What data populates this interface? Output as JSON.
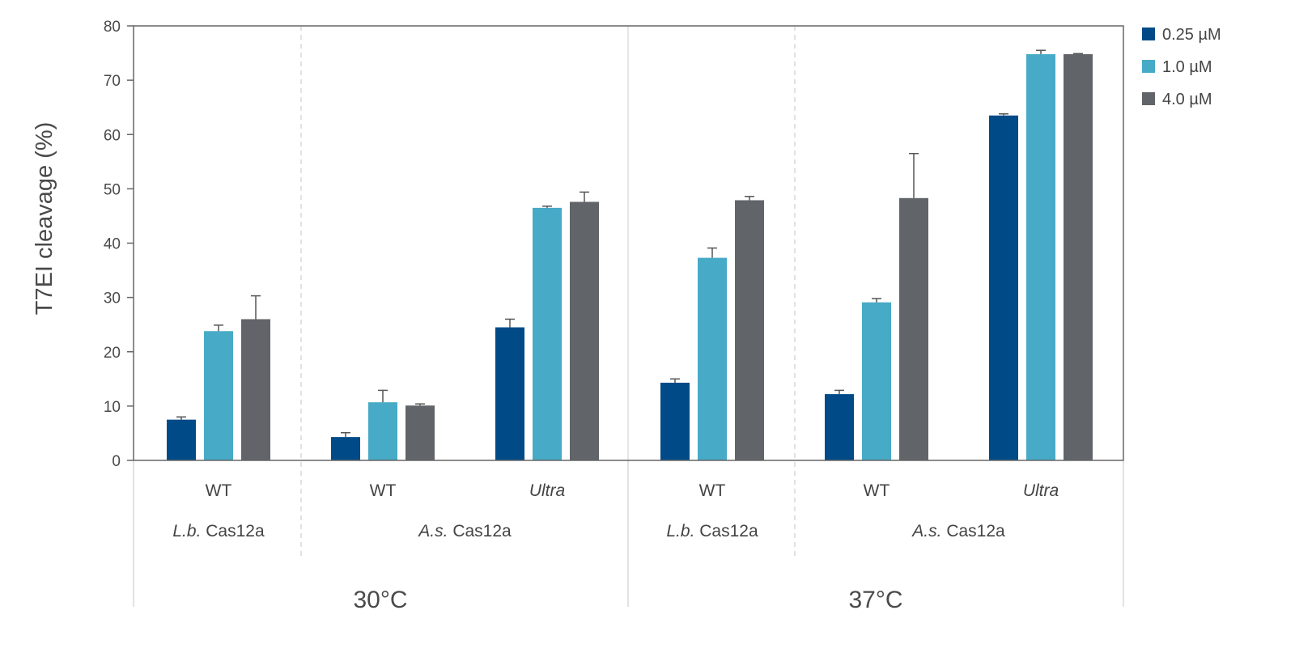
{
  "chart_data": {
    "type": "bar",
    "ylabel": "T7EI cleavage (%)",
    "ylim": [
      0,
      80
    ],
    "yticks": [
      0,
      10,
      20,
      30,
      40,
      50,
      60,
      70,
      80
    ],
    "legend_position": "top-right",
    "colors": {
      "0.25 µM": "#004a87",
      "1.0 µM": "#47aac6",
      "4.0 µM": "#616469"
    },
    "categories": [
      {
        "variant": "WT",
        "variant_italic": false,
        "enzyme_italic": "L.b.",
        "enzyme": " Cas12a",
        "temperature": "30°C"
      },
      {
        "variant": "WT",
        "variant_italic": false,
        "enzyme_italic": "A.s.",
        "enzyme": " Cas12a",
        "temperature": "30°C"
      },
      {
        "variant": "Ultra",
        "variant_italic": true,
        "enzyme_italic": "A.s.",
        "enzyme": " Cas12a",
        "temperature": "30°C"
      },
      {
        "variant": "WT",
        "variant_italic": false,
        "enzyme_italic": "L.b.",
        "enzyme": " Cas12a",
        "temperature": "37°C"
      },
      {
        "variant": "WT",
        "variant_italic": false,
        "enzyme_italic": "A.s.",
        "enzyme": " Cas12a",
        "temperature": "37°C"
      },
      {
        "variant": "Ultra",
        "variant_italic": true,
        "enzyme_italic": "A.s.",
        "enzyme": " Cas12a",
        "temperature": "37°C"
      }
    ],
    "enzyme_groups": [
      {
        "italic": "L.b.",
        "text": " Cas12a",
        "span": [
          0,
          0
        ]
      },
      {
        "italic": "A.s.",
        "text": " Cas12a",
        "span": [
          1,
          2
        ]
      },
      {
        "italic": "L.b.",
        "text": " Cas12a",
        "span": [
          3,
          3
        ]
      },
      {
        "italic": "A.s.",
        "text": " Cas12a",
        "span": [
          4,
          5
        ]
      }
    ],
    "temperature_groups": [
      {
        "label": "30°C",
        "span": [
          0,
          2
        ]
      },
      {
        "label": "37°C",
        "span": [
          3,
          5
        ]
      }
    ],
    "series": [
      {
        "name": "0.25 µM",
        "values": [
          7.5,
          4.3,
          24.5,
          14.3,
          12.2,
          63.5
        ],
        "errors": [
          0.5,
          0.8,
          1.5,
          0.7,
          0.7,
          0.3
        ]
      },
      {
        "name": "1.0 µM",
        "values": [
          23.8,
          10.7,
          46.5,
          37.3,
          29.1,
          74.8
        ],
        "errors": [
          1.1,
          2.2,
          0.3,
          1.8,
          0.7,
          0.7
        ]
      },
      {
        "name": "4.0 µM",
        "values": [
          26.0,
          10.1,
          47.6,
          47.9,
          48.3,
          74.8
        ],
        "errors": [
          4.3,
          0.3,
          1.8,
          0.7,
          8.2,
          0.1
        ]
      }
    ]
  }
}
